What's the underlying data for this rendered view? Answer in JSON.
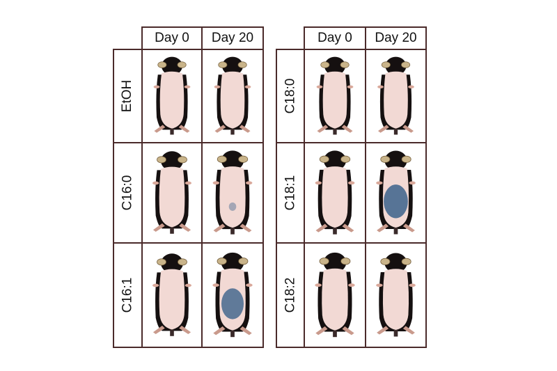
{
  "panels": [
    {
      "columns": [
        "Day  0",
        "Day 20"
      ],
      "rows": [
        {
          "label": "EtOH",
          "day0_stain": 0,
          "day20_stain": 0
        },
        {
          "label": "C16:0",
          "day0_stain": 0,
          "day20_stain": 0.1
        },
        {
          "label": "C16:1",
          "day0_stain": 0,
          "day20_stain": 0.8
        }
      ]
    },
    {
      "columns": [
        "Day  0",
        "Day 20"
      ],
      "rows": [
        {
          "label": "C18:0",
          "day0_stain": 0,
          "day20_stain": 0
        },
        {
          "label": "C18:1",
          "day0_stain": 0,
          "day20_stain": 0.9
        },
        {
          "label": "C18:2",
          "day0_stain": 0,
          "day20_stain": 0
        }
      ]
    }
  ],
  "colors": {
    "border": "#4a2a2a",
    "skin": "#f2d9d4",
    "fur": "#151010",
    "ear": "#c9b48a",
    "stain": "#2f5a86"
  }
}
